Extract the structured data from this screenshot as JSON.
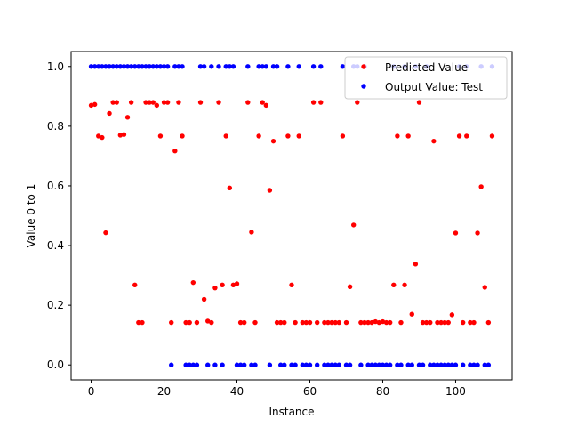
{
  "chart_data": {
    "type": "scatter",
    "xlabel": "Instance",
    "ylabel": "Value 0 to 1",
    "xlim": [
      -5.5,
      115.5
    ],
    "ylim": [
      -0.05,
      1.05
    ],
    "xticks": [
      0,
      20,
      40,
      60,
      80,
      100
    ],
    "yticks": [
      0.0,
      0.2,
      0.4,
      0.6,
      0.8,
      1.0
    ],
    "xtick_labels": [
      "0",
      "20",
      "40",
      "60",
      "80",
      "100"
    ],
    "ytick_labels": [
      "0.0",
      "0.2",
      "0.4",
      "0.6",
      "0.8",
      "1.0"
    ],
    "grid": false,
    "legend_position": "top-right",
    "series": [
      {
        "name": "Predicted Value",
        "color": "#ff0000",
        "points": [
          [
            0,
            0.87
          ],
          [
            1,
            0.873
          ],
          [
            2,
            0.767
          ],
          [
            3,
            0.762
          ],
          [
            4,
            0.443
          ],
          [
            5,
            0.843
          ],
          [
            6,
            0.88
          ],
          [
            7,
            0.88
          ],
          [
            8,
            0.77
          ],
          [
            9,
            0.772
          ],
          [
            10,
            0.83
          ],
          [
            11,
            0.88
          ],
          [
            12,
            0.268
          ],
          [
            13,
            0.142
          ],
          [
            14,
            0.142
          ],
          [
            15,
            0.88
          ],
          [
            16,
            0.88
          ],
          [
            17,
            0.88
          ],
          [
            18,
            0.87
          ],
          [
            19,
            0.767
          ],
          [
            20,
            0.88
          ],
          [
            21,
            0.88
          ],
          [
            22,
            0.142
          ],
          [
            23,
            0.717
          ],
          [
            24,
            0.88
          ],
          [
            25,
            0.767
          ],
          [
            26,
            0.142
          ],
          [
            27,
            0.142
          ],
          [
            28,
            0.276
          ],
          [
            29,
            0.142
          ],
          [
            30,
            0.88
          ],
          [
            31,
            0.22
          ],
          [
            32,
            0.147
          ],
          [
            33,
            0.142
          ],
          [
            34,
            0.258
          ],
          [
            35,
            0.88
          ],
          [
            36,
            0.268
          ],
          [
            37,
            0.767
          ],
          [
            38,
            0.593
          ],
          [
            39,
            0.268
          ],
          [
            40,
            0.272
          ],
          [
            41,
            0.142
          ],
          [
            42,
            0.142
          ],
          [
            43,
            0.88
          ],
          [
            44,
            0.445
          ],
          [
            45,
            0.142
          ],
          [
            46,
            0.767
          ],
          [
            47,
            0.88
          ],
          [
            48,
            0.87
          ],
          [
            49,
            0.585
          ],
          [
            50,
            0.75
          ],
          [
            51,
            0.142
          ],
          [
            52,
            0.142
          ],
          [
            53,
            0.142
          ],
          [
            54,
            0.767
          ],
          [
            55,
            0.268
          ],
          [
            56,
            0.142
          ],
          [
            57,
            0.767
          ],
          [
            58,
            0.142
          ],
          [
            59,
            0.142
          ],
          [
            60,
            0.142
          ],
          [
            61,
            0.88
          ],
          [
            62,
            0.142
          ],
          [
            63,
            0.88
          ],
          [
            64,
            0.142
          ],
          [
            65,
            0.142
          ],
          [
            66,
            0.142
          ],
          [
            67,
            0.142
          ],
          [
            68,
            0.142
          ],
          [
            69,
            0.767
          ],
          [
            70,
            0.142
          ],
          [
            71,
            0.262
          ],
          [
            72,
            0.469
          ],
          [
            73,
            0.88
          ],
          [
            74,
            0.142
          ],
          [
            75,
            0.142
          ],
          [
            76,
            0.142
          ],
          [
            77,
            0.142
          ],
          [
            78,
            0.145
          ],
          [
            79,
            0.142
          ],
          [
            80,
            0.145
          ],
          [
            81,
            0.142
          ],
          [
            82,
            0.142
          ],
          [
            83,
            0.268
          ],
          [
            84,
            0.767
          ],
          [
            85,
            0.142
          ],
          [
            86,
            0.268
          ],
          [
            87,
            0.767
          ],
          [
            88,
            0.17
          ],
          [
            89,
            0.338
          ],
          [
            90,
            0.88
          ],
          [
            91,
            0.142
          ],
          [
            92,
            0.142
          ],
          [
            93,
            0.142
          ],
          [
            94,
            0.75
          ],
          [
            95,
            0.142
          ],
          [
            96,
            0.142
          ],
          [
            97,
            0.142
          ],
          [
            98,
            0.142
          ],
          [
            99,
            0.168
          ],
          [
            100,
            0.442
          ],
          [
            101,
            0.767
          ],
          [
            102,
            0.142
          ],
          [
            103,
            0.767
          ],
          [
            104,
            0.142
          ],
          [
            105,
            0.142
          ],
          [
            106,
            0.442
          ],
          [
            107,
            0.597
          ],
          [
            108,
            0.26
          ],
          [
            109,
            0.142
          ],
          [
            110,
            0.767
          ]
        ]
      },
      {
        "name": "Output Value: Test",
        "color": "#0000ff",
        "points": [
          [
            0,
            1
          ],
          [
            1,
            1
          ],
          [
            2,
            1
          ],
          [
            3,
            1
          ],
          [
            4,
            1
          ],
          [
            5,
            1
          ],
          [
            6,
            1
          ],
          [
            7,
            1
          ],
          [
            8,
            1
          ],
          [
            9,
            1
          ],
          [
            10,
            1
          ],
          [
            11,
            1
          ],
          [
            12,
            1
          ],
          [
            13,
            1
          ],
          [
            14,
            1
          ],
          [
            15,
            1
          ],
          [
            16,
            1
          ],
          [
            17,
            1
          ],
          [
            18,
            1
          ],
          [
            19,
            1
          ],
          [
            20,
            1
          ],
          [
            21,
            1
          ],
          [
            22,
            0
          ],
          [
            23,
            1
          ],
          [
            24,
            1
          ],
          [
            25,
            1
          ],
          [
            26,
            0
          ],
          [
            27,
            0
          ],
          [
            28,
            0
          ],
          [
            29,
            0
          ],
          [
            30,
            1
          ],
          [
            31,
            1
          ],
          [
            32,
            0
          ],
          [
            33,
            1
          ],
          [
            34,
            0
          ],
          [
            35,
            1
          ],
          [
            36,
            0
          ],
          [
            37,
            1
          ],
          [
            38,
            1
          ],
          [
            39,
            1
          ],
          [
            40,
            0
          ],
          [
            41,
            0
          ],
          [
            42,
            0
          ],
          [
            43,
            1
          ],
          [
            44,
            0
          ],
          [
            45,
            0
          ],
          [
            46,
            1
          ],
          [
            47,
            1
          ],
          [
            48,
            1
          ],
          [
            49,
            0
          ],
          [
            50,
            1
          ],
          [
            51,
            1
          ],
          [
            52,
            0
          ],
          [
            53,
            0
          ],
          [
            54,
            1
          ],
          [
            55,
            0
          ],
          [
            56,
            0
          ],
          [
            57,
            1
          ],
          [
            58,
            0
          ],
          [
            59,
            0
          ],
          [
            60,
            0
          ],
          [
            61,
            1
          ],
          [
            62,
            0
          ],
          [
            63,
            1
          ],
          [
            64,
            0
          ],
          [
            65,
            0
          ],
          [
            66,
            0
          ],
          [
            67,
            0
          ],
          [
            68,
            0
          ],
          [
            69,
            1
          ],
          [
            70,
            0
          ],
          [
            71,
            0
          ],
          [
            72,
            1
          ],
          [
            73,
            1
          ],
          [
            74,
            0
          ],
          [
            75,
            1
          ],
          [
            76,
            0
          ],
          [
            77,
            0
          ],
          [
            78,
            0
          ],
          [
            79,
            0
          ],
          [
            80,
            0
          ],
          [
            81,
            0
          ],
          [
            82,
            0
          ],
          [
            83,
            1
          ],
          [
            84,
            0
          ],
          [
            85,
            0
          ],
          [
            86,
            1
          ],
          [
            87,
            0
          ],
          [
            88,
            0
          ],
          [
            89,
            1
          ],
          [
            90,
            0
          ],
          [
            91,
            0
          ],
          [
            92,
            1
          ],
          [
            93,
            0
          ],
          [
            94,
            0
          ],
          [
            95,
            0
          ],
          [
            96,
            0
          ],
          [
            97,
            0
          ],
          [
            98,
            0
          ],
          [
            99,
            0
          ],
          [
            100,
            0
          ],
          [
            101,
            1
          ],
          [
            102,
            0
          ],
          [
            103,
            1
          ],
          [
            104,
            0
          ],
          [
            105,
            0
          ],
          [
            106,
            0
          ],
          [
            107,
            1
          ],
          [
            108,
            0
          ],
          [
            109,
            0
          ],
          [
            110,
            1
          ]
        ]
      }
    ]
  }
}
